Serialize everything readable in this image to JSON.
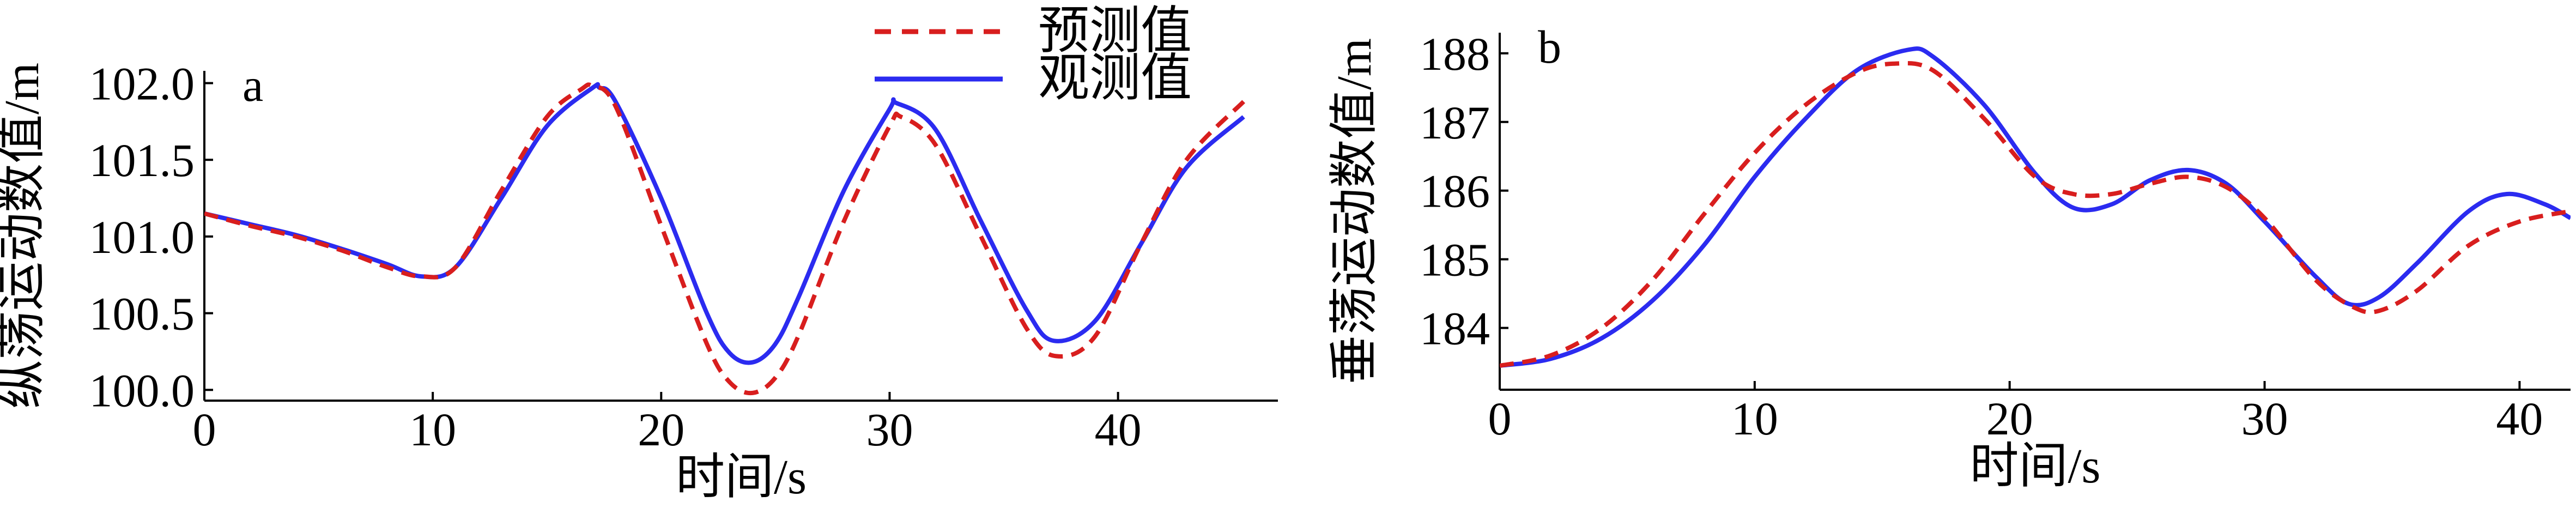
{
  "legend": [
    {
      "label": "预测值",
      "color": "#d81e1e",
      "dash": "dashed"
    },
    {
      "label": "观测值",
      "color": "#2b2bf0",
      "dash": "solid"
    }
  ],
  "chart_data": [
    {
      "type": "line",
      "panel_label": "a",
      "xlabel": "时间/s",
      "ylabel": "纵荡运动数值/m",
      "xlim": [
        0,
        47
      ],
      "ylim": [
        99.93,
        102.08
      ],
      "xticks": [
        0,
        10,
        20,
        30,
        40
      ],
      "xtick_labels": [
        "0",
        "10",
        "20",
        "30",
        "40"
      ],
      "yticks": [
        100.0,
        100.5,
        101.0,
        101.5,
        102.0
      ],
      "ytick_labels": [
        "100.0",
        "100.5",
        "101.0",
        "101.5",
        "102.0"
      ],
      "grid": false,
      "legend_position": "top-right",
      "series": [
        {
          "name": "预测值",
          "color": "#d81e1e",
          "dash": "dashed",
          "x": [
            0,
            2,
            4,
            6,
            8,
            9.5,
            11,
            13,
            15,
            16.5,
            17,
            18,
            20,
            22,
            23,
            24,
            25,
            26,
            28,
            30,
            30.5,
            32,
            34,
            36,
            37.3,
            39,
            41,
            43,
            45.5
          ],
          "y": [
            101.15,
            101.07,
            101.0,
            100.91,
            100.8,
            100.74,
            100.8,
            101.3,
            101.78,
            101.96,
            101.98,
            101.85,
            101.07,
            100.3,
            100.05,
            99.98,
            100.08,
            100.35,
            101.1,
            101.72,
            101.78,
            101.6,
            101.0,
            100.4,
            100.22,
            100.35,
            100.95,
            101.5,
            101.88
          ]
        },
        {
          "name": "观测值",
          "color": "#2b2bf0",
          "dash": "solid",
          "x": [
            0,
            2,
            4,
            6,
            8,
            9.5,
            11,
            13,
            15,
            17,
            17.3,
            18,
            20,
            22,
            23,
            24,
            25,
            26,
            28,
            30,
            30.3,
            32,
            34,
            36,
            37.2,
            39,
            41,
            43,
            45.5
          ],
          "y": [
            101.15,
            101.08,
            101.01,
            100.92,
            100.82,
            100.74,
            100.8,
            101.25,
            101.72,
            101.97,
            101.97,
            101.88,
            101.25,
            100.5,
            100.24,
            100.18,
            100.3,
            100.6,
            101.3,
            101.83,
            101.87,
            101.7,
            101.1,
            100.52,
            100.32,
            100.45,
            100.95,
            101.45,
            101.78
          ]
        }
      ]
    },
    {
      "type": "line",
      "panel_label": "b",
      "xlabel": "时间/s",
      "ylabel": "垂荡运动数值/m",
      "xlim": [
        0,
        42
      ],
      "ylim": [
        183.1,
        188.3
      ],
      "xticks": [
        0,
        10,
        20,
        30,
        40
      ],
      "xtick_labels": [
        "0",
        "10",
        "20",
        "30",
        "40"
      ],
      "yticks": [
        184,
        185,
        186,
        187,
        188
      ],
      "ytick_labels": [
        "184",
        "185",
        "186",
        "187",
        "188"
      ],
      "grid": false,
      "series": [
        {
          "name": "预测值",
          "color": "#d81e1e",
          "dash": "dashed",
          "x": [
            0,
            2,
            4,
            6,
            8,
            10,
            12,
            14,
            15.5,
            17,
            19,
            21,
            22.5,
            24,
            25.5,
            27,
            28.5,
            30,
            32,
            33.5,
            34.5,
            36,
            38,
            40,
            42
          ],
          "y": [
            183.45,
            183.6,
            184.0,
            184.7,
            185.65,
            186.55,
            187.25,
            187.72,
            187.85,
            187.75,
            187.05,
            186.2,
            185.95,
            185.95,
            186.1,
            186.2,
            186.05,
            185.6,
            184.7,
            184.3,
            184.25,
            184.55,
            185.2,
            185.55,
            185.7
          ]
        },
        {
          "name": "观测值",
          "color": "#2b2bf0",
          "dash": "solid",
          "x": [
            0,
            2,
            4,
            6,
            8,
            10,
            12,
            14,
            16,
            17,
            19,
            21,
            22.5,
            24,
            25.5,
            27,
            28.5,
            30,
            32,
            33.3,
            34.5,
            36,
            38,
            39.5,
            41,
            42
          ],
          "y": [
            183.45,
            183.55,
            183.85,
            184.4,
            185.2,
            186.2,
            187.05,
            187.75,
            188.05,
            187.95,
            187.25,
            186.25,
            185.75,
            185.8,
            186.15,
            186.3,
            186.1,
            185.55,
            184.75,
            184.35,
            184.45,
            184.95,
            185.7,
            185.95,
            185.8,
            185.6
          ]
        }
      ]
    }
  ]
}
